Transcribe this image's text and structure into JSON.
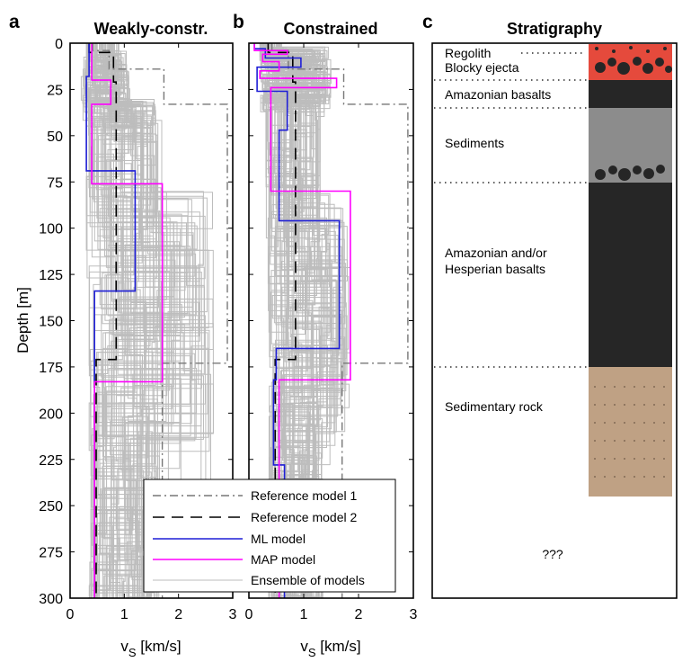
{
  "panels": [
    {
      "letter": "a",
      "title": "Weakly-constr.",
      "ml": [
        [
          0.35,
          0
        ],
        [
          0.35,
          18
        ],
        [
          0.3,
          18
        ],
        [
          0.3,
          69
        ],
        [
          1.2,
          69
        ],
        [
          1.2,
          134
        ],
        [
          0.45,
          134
        ],
        [
          0.45,
          300
        ]
      ],
      "map": [
        [
          0.4,
          0
        ],
        [
          0.4,
          20
        ],
        [
          0.75,
          20
        ],
        [
          0.75,
          33
        ],
        [
          0.4,
          33
        ],
        [
          0.4,
          76
        ],
        [
          1.7,
          76
        ],
        [
          1.7,
          183
        ],
        [
          0.45,
          183
        ],
        [
          0.45,
          300
        ]
      ]
    },
    {
      "letter": "b",
      "title": "Constrained",
      "ml": [
        [
          0.1,
          0
        ],
        [
          0.1,
          3
        ],
        [
          0.3,
          3
        ],
        [
          0.3,
          8
        ],
        [
          0.95,
          8
        ],
        [
          0.95,
          13
        ],
        [
          0.15,
          13
        ],
        [
          0.15,
          26
        ],
        [
          0.7,
          26
        ],
        [
          0.7,
          47
        ],
        [
          0.55,
          47
        ],
        [
          0.55,
          96
        ],
        [
          1.65,
          96
        ],
        [
          1.65,
          165
        ],
        [
          0.5,
          165
        ],
        [
          0.5,
          182
        ],
        [
          0.45,
          182
        ],
        [
          0.45,
          228
        ],
        [
          0.65,
          228
        ],
        [
          0.65,
          300
        ]
      ],
      "map": [
        [
          0.1,
          0
        ],
        [
          0.1,
          4
        ],
        [
          0.7,
          4
        ],
        [
          0.7,
          6
        ],
        [
          0.25,
          6
        ],
        [
          0.25,
          10
        ],
        [
          0.55,
          10
        ],
        [
          0.55,
          15
        ],
        [
          0.2,
          15
        ],
        [
          0.2,
          19
        ],
        [
          1.6,
          19
        ],
        [
          1.6,
          24
        ],
        [
          0.4,
          24
        ],
        [
          0.4,
          80
        ],
        [
          1.85,
          80
        ],
        [
          1.85,
          182
        ],
        [
          0.55,
          182
        ],
        [
          0.55,
          300
        ]
      ]
    }
  ],
  "chart_data": [
    {
      "type": "line",
      "panel": "a",
      "title": "Weakly-constr.",
      "xlabel": "v_S [km/s]",
      "ylabel": "Depth [m]",
      "xlim": [
        0,
        3
      ],
      "ylim": [
        300,
        0
      ],
      "xticks": [
        0,
        1,
        2,
        3
      ],
      "yticks": [
        0,
        25,
        50,
        75,
        100,
        125,
        150,
        175,
        200,
        225,
        250,
        275,
        300
      ],
      "series": [
        {
          "name": "Reference model 1",
          "x": [
            0.42,
            0.42,
            0.72,
            0.72,
            1.73,
            1.73,
            2.9,
            2.9,
            1.7,
            1.7
          ],
          "y": [
            0,
            4,
            4,
            14,
            14,
            33,
            33,
            173,
            173,
            300
          ]
        },
        {
          "name": "Reference model 2",
          "x": [
            0.35,
            0.35,
            0.8,
            0.8,
            0.85,
            0.85,
            0.48,
            0.48
          ],
          "y": [
            0,
            5,
            5,
            21,
            21,
            171,
            171,
            300
          ]
        },
        {
          "name": "ML model",
          "x": [
            0.35,
            0.35,
            0.3,
            0.3,
            1.2,
            1.2,
            0.45,
            0.45
          ],
          "y": [
            0,
            18,
            18,
            69,
            69,
            134,
            134,
            300
          ]
        },
        {
          "name": "MAP model",
          "x": [
            0.4,
            0.4,
            0.75,
            0.75,
            0.4,
            0.4,
            1.7,
            1.7,
            0.45,
            0.45
          ],
          "y": [
            0,
            20,
            20,
            33,
            33,
            76,
            76,
            183,
            183,
            300
          ]
        },
        {
          "name": "Ensemble of models",
          "x": [],
          "y": []
        }
      ]
    },
    {
      "type": "line",
      "panel": "b",
      "title": "Constrained",
      "xlabel": "v_S [km/s]",
      "ylabel": "",
      "xlim": [
        0,
        3
      ],
      "ylim": [
        300,
        0
      ],
      "xticks": [
        0,
        1,
        2,
        3
      ],
      "series": [
        {
          "name": "Reference model 1",
          "x": [
            0.42,
            0.42,
            0.72,
            0.72,
            1.73,
            1.73,
            2.9,
            2.9,
            1.7,
            1.7
          ],
          "y": [
            0,
            4,
            4,
            14,
            14,
            33,
            33,
            173,
            173,
            300
          ]
        },
        {
          "name": "Reference model 2",
          "x": [
            0.35,
            0.35,
            0.8,
            0.8,
            0.85,
            0.85,
            0.48,
            0.48
          ],
          "y": [
            0,
            5,
            5,
            21,
            21,
            171,
            171,
            300
          ]
        },
        {
          "name": "ML model",
          "x": [
            0.1,
            0.1,
            0.3,
            0.3,
            0.95,
            0.95,
            0.15,
            0.15,
            0.7,
            0.7,
            0.55,
            0.55,
            1.65,
            1.65,
            0.5,
            0.5,
            0.45,
            0.45,
            0.65,
            0.65
          ],
          "y": [
            0,
            3,
            3,
            8,
            8,
            13,
            13,
            26,
            26,
            47,
            47,
            96,
            96,
            165,
            165,
            182,
            182,
            228,
            228,
            300
          ]
        },
        {
          "name": "MAP model",
          "x": [
            0.1,
            0.1,
            0.7,
            0.7,
            0.25,
            0.25,
            0.55,
            0.55,
            0.2,
            0.2,
            1.6,
            1.6,
            0.4,
            0.4,
            1.85,
            1.85,
            0.55,
            0.55
          ],
          "y": [
            0,
            4,
            4,
            6,
            6,
            10,
            10,
            15,
            15,
            19,
            19,
            24,
            24,
            80,
            80,
            182,
            182,
            300
          ]
        },
        {
          "name": "Ensemble of models",
          "x": [],
          "y": []
        }
      ]
    }
  ],
  "reference_models": {
    "ref1": [
      [
        0.42,
        0
      ],
      [
        0.42,
        4
      ],
      [
        0.72,
        4
      ],
      [
        0.72,
        14
      ],
      [
        1.73,
        14
      ],
      [
        1.73,
        33
      ],
      [
        2.9,
        33
      ],
      [
        2.9,
        173
      ],
      [
        1.7,
        173
      ],
      [
        1.7,
        300
      ]
    ],
    "ref2": [
      [
        0.35,
        0
      ],
      [
        0.35,
        5
      ],
      [
        0.8,
        5
      ],
      [
        0.8,
        21
      ],
      [
        0.85,
        21
      ],
      [
        0.85,
        171
      ],
      [
        0.48,
        171
      ],
      [
        0.48,
        300
      ]
    ]
  },
  "axes": {
    "ylabel": "Depth [m]",
    "xlabel_main": "v",
    "xlabel_sub": "S",
    "xlabel_unit": " [km/s]",
    "xticks": [
      "0",
      "1",
      "2",
      "3"
    ],
    "yticks": [
      "0",
      "25",
      "50",
      "75",
      "100",
      "125",
      "150",
      "175",
      "200",
      "225",
      "250",
      "275",
      "300"
    ]
  },
  "legend": {
    "ref1": "Reference model 1",
    "ref2": "Reference model 2",
    "ml": "ML model",
    "map": "MAP model",
    "ensemble": "Ensemble of models"
  },
  "colors": {
    "ensemble": "#bdbdbd",
    "ml": "#1f1fd6",
    "map": "#ff00ff",
    "ref1": "#777777",
    "ref2": "#000000",
    "regolith": "#e54a3c",
    "basalt": "#262626",
    "sediments": "#8c8c8c",
    "sedimentary_rock": "#bfa184"
  },
  "stratigraphy": {
    "letter": "c",
    "title": "Stratigraphy",
    "labels": {
      "regolith": "Regolith",
      "blocky": "Blocky ejecta",
      "amazonian": "Amazonian basalts",
      "sediments": "Sediments",
      "amz_hesp_1": "Amazonian and/or",
      "amz_hesp_2": "Hesperian basalts",
      "sed_rock": "Sedimentary rock",
      "unknown": "???"
    },
    "layer_depths": [
      {
        "name": "Regolith / Blocky ejecta",
        "top": 0,
        "bottom": 21
      },
      {
        "name": "Amazonian basalts",
        "top": 21,
        "bottom": 35
      },
      {
        "name": "Sediments",
        "top": 35,
        "bottom": 75
      },
      {
        "name": "Amazonian and/or Hesperian basalts",
        "top": 75,
        "bottom": 175
      },
      {
        "name": "Sedimentary rock",
        "top": 175,
        "bottom": 245
      }
    ]
  }
}
